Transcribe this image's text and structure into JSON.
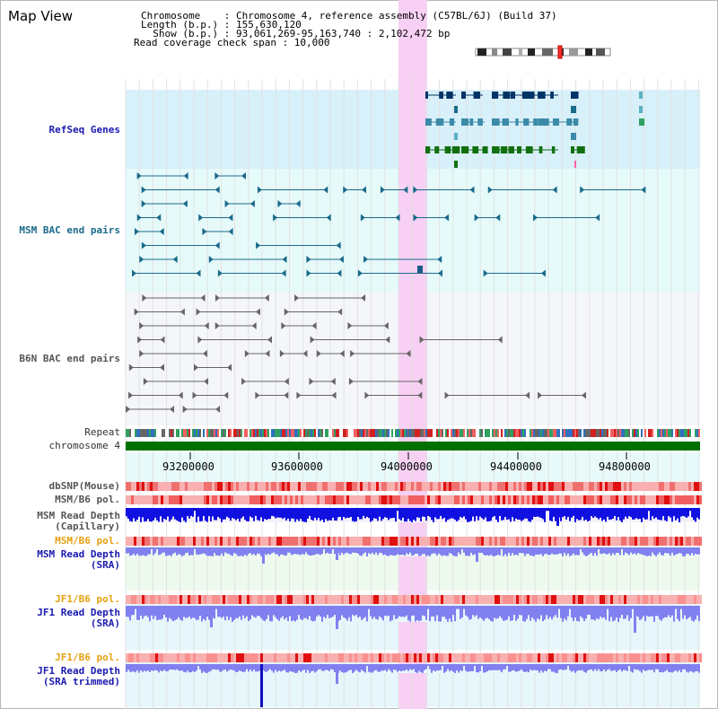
{
  "header": {
    "title": "Map View",
    "lines": [
      "Chromosome    : Chromosome 4, reference assembly (C57BL/6J) (Build 37)",
      "Length (b.p.) : 155,630,120",
      "  Show (b.p.) : 93,061,269-95,163,740 : 2,102,472 bp",
      "Read coverage check span : 10,000"
    ]
  },
  "tracks": {
    "refseq": "RefSeq Genes",
    "msm_bac": "MSM BAC end pairs",
    "b6n_bac": "B6N BAC end pairs",
    "repeat": "Repeat",
    "chromosome": "chromosome 4",
    "dbsnp": "dbSNP(Mouse)",
    "msm_b6_pol_1": "MSM/B6 pol.",
    "msm_depth_cap": "MSM Read Depth\n(Capillary)",
    "msm_b6_pol_2": "MSM/B6 pol.",
    "msm_depth_sra": "MSM Read Depth\n(SRA)",
    "jf1_pol_1": "JF1/B6 pol.",
    "jf1_depth_sra": "JF1 Read Depth\n(SRA)",
    "jf1_pol_2": "JF1/B6 pol.",
    "jf1_depth_trim": "JF1 Read Depth\n(SRA trimmed)"
  },
  "axis": {
    "ticks": [
      "93200000",
      "93600000",
      "94000000",
      "94400000",
      "94800000"
    ]
  },
  "colors": {
    "refseq_bg": "#d8f0fa",
    "bac_bg": "#e6fafa",
    "b6n_bg": "#f4f6fa",
    "highlight": "#f8d0f4",
    "chromosome_bar": "#007000",
    "depth_blue": "#1010e0",
    "depth_sra": "#8080f0",
    "pol_red": "#f06060"
  }
}
